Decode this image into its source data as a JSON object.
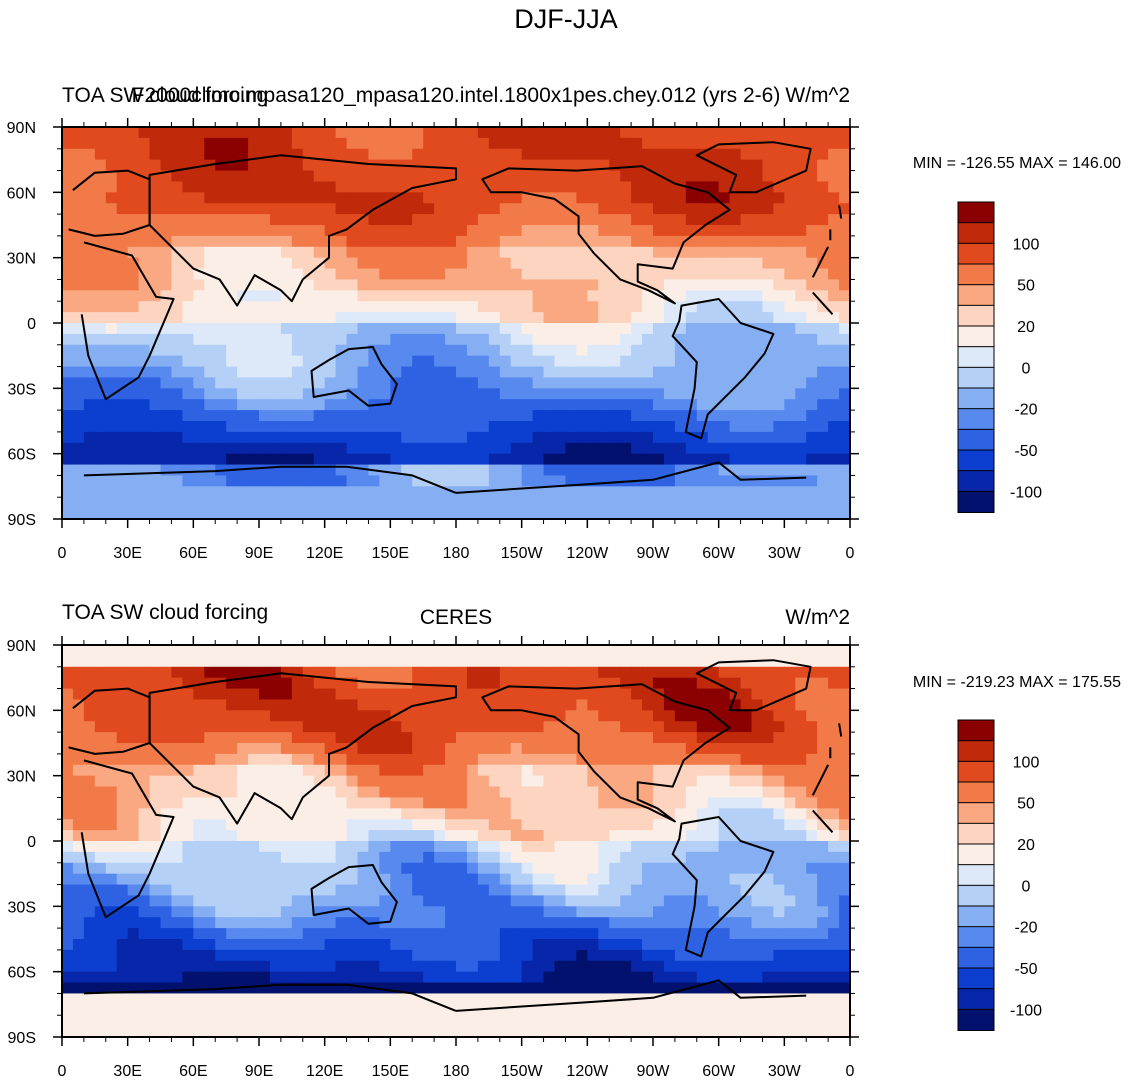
{
  "figure_title": "DJF-JJA",
  "chart_data": [
    {
      "type": "heatmap",
      "subtitle_left": "TOA SW cloud forcing",
      "subtitle_center": "F2000climo.mpasa120_mpasa120.intel.1800x1pes.chey.012 (yrs 2-6)",
      "units": "W/m^2",
      "stats": "MIN = -126.55 MAX = 146.00",
      "xticks": [
        "0",
        "30E",
        "60E",
        "90E",
        "120E",
        "150E",
        "180",
        "150W",
        "120W",
        "90W",
        "60W",
        "30W",
        "0"
      ],
      "yticks": [
        "90N",
        "60N",
        "30N",
        "0",
        "30S",
        "60S",
        "90S"
      ],
      "colorbar_labels": [
        "100",
        "50",
        "20",
        "0",
        "-20",
        "-50",
        "-100"
      ],
      "pattern": "model"
    },
    {
      "type": "heatmap",
      "subtitle_left": "TOA SW cloud forcing",
      "subtitle_center": "CERES",
      "units": "W/m^2",
      "stats": "MIN = -219.23 MAX = 175.55",
      "xticks": [
        "0",
        "30E",
        "60E",
        "90E",
        "120E",
        "150E",
        "180",
        "150W",
        "120W",
        "90W",
        "60W",
        "30W",
        "0"
      ],
      "yticks": [
        "90N",
        "60N",
        "30N",
        "0",
        "30S",
        "60S",
        "90S"
      ],
      "colorbar_labels": [
        "100",
        "50",
        "20",
        "0",
        "-20",
        "-50",
        "-100"
      ],
      "pattern": "obs"
    }
  ],
  "colorbar_colors": [
    "#8b0000",
    "#c0290a",
    "#e14a1e",
    "#f27a48",
    "#f9a882",
    "#fcd4bf",
    "#fbeee6",
    "#dde9f8",
    "#b5d0f7",
    "#86aef3",
    "#5789ee",
    "#2e62e3",
    "#0c3fcf",
    "#0726aa",
    "#03116e"
  ]
}
